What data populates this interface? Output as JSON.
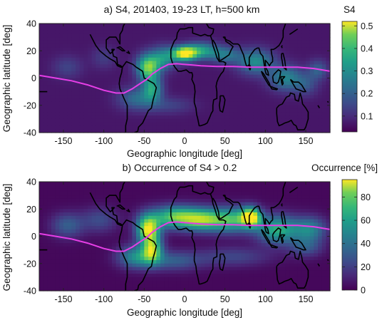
{
  "chart_data": [
    {
      "type": "heatmap",
      "panel": "a",
      "title": "a) S4, 201403, 19-23 LT, h=500 km",
      "xlabel": "Geographic longitude [deg]",
      "ylabel": "Geographic latitude [deg]",
      "xlim": [
        -180,
        180
      ],
      "ylim": [
        -40,
        40
      ],
      "xticks": [
        -150,
        -100,
        -50,
        0,
        50,
        100,
        150
      ],
      "yticks": [
        -40,
        -20,
        0,
        20,
        40
      ],
      "colorbar": {
        "label": "S4",
        "range": [
          0.03,
          0.52
        ],
        "ticks": [
          0.1,
          0.2,
          0.3,
          0.4,
          0.5
        ],
        "colormap": "viridis"
      },
      "background_level": 0.06,
      "hotspots": [
        {
          "lon": -45,
          "lat": 8,
          "lon_width": 14,
          "lat_width": 9,
          "value": 0.42
        },
        {
          "lon": -40,
          "lat": -8,
          "lon_width": 12,
          "lat_width": 9,
          "value": 0.3
        },
        {
          "lon": -60,
          "lat": -15,
          "lon_width": 22,
          "lat_width": 8,
          "value": 0.2
        },
        {
          "lon": 0,
          "lat": 18,
          "lon_width": 14,
          "lat_width": 5,
          "value": 0.5
        },
        {
          "lon": 20,
          "lat": 20,
          "lon_width": 20,
          "lat_width": 6,
          "value": 0.3
        },
        {
          "lon": -25,
          "lat": 15,
          "lon_width": 16,
          "lat_width": 8,
          "value": 0.27
        },
        {
          "lon": 50,
          "lat": 17,
          "lon_width": 18,
          "lat_width": 6,
          "value": 0.22
        },
        {
          "lon": 88,
          "lat": 12,
          "lon_width": 22,
          "lat_width": 9,
          "value": 0.27
        },
        {
          "lon": 125,
          "lat": 0,
          "lon_width": 20,
          "lat_width": 9,
          "value": 0.25
        },
        {
          "lon": 165,
          "lat": 6,
          "lon_width": 12,
          "lat_width": 7,
          "value": 0.18
        },
        {
          "lon": -145,
          "lat": 8,
          "lon_width": 18,
          "lat_width": 8,
          "value": 0.13
        },
        {
          "lon": -100,
          "lat": 15,
          "lon_width": 15,
          "lat_width": 8,
          "value": 0.12
        },
        {
          "lon": -20,
          "lat": -20,
          "lon_width": 30,
          "lat_width": 6,
          "value": 0.13
        },
        {
          "lon": 150,
          "lat": -5,
          "lon_width": 15,
          "lat_width": 8,
          "value": 0.15
        }
      ]
    },
    {
      "type": "heatmap",
      "panel": "b",
      "title": "b) Occurrence of S4 > 0.2",
      "xlabel": "Geographic longitude [deg]",
      "ylabel": "Geographic latitude [deg]",
      "xlim": [
        -180,
        180
      ],
      "ylim": [
        -40,
        40
      ],
      "xticks": [
        -150,
        -100,
        -50,
        0,
        50,
        100,
        150
      ],
      "yticks": [
        -40,
        -20,
        0,
        20,
        40
      ],
      "colorbar": {
        "label": "Occurrence [%]",
        "range": [
          0,
          95
        ],
        "ticks": [
          0,
          20,
          40,
          60,
          80
        ],
        "colormap": "viridis"
      },
      "background_level": 2,
      "hotspots": [
        {
          "lon": -45,
          "lat": 5,
          "lon_width": 14,
          "lat_width": 10,
          "value": 90
        },
        {
          "lon": -40,
          "lat": -10,
          "lon_width": 12,
          "lat_width": 9,
          "value": 70
        },
        {
          "lon": -60,
          "lat": -15,
          "lon_width": 22,
          "lat_width": 8,
          "value": 45
        },
        {
          "lon": -10,
          "lat": 14,
          "lon_width": 30,
          "lat_width": 8,
          "value": 72
        },
        {
          "lon": 25,
          "lat": 12,
          "lon_width": 25,
          "lat_width": 8,
          "value": 62
        },
        {
          "lon": 60,
          "lat": 12,
          "lon_width": 25,
          "lat_width": 9,
          "value": 58
        },
        {
          "lon": 82,
          "lat": 14,
          "lon_width": 12,
          "lat_width": 7,
          "value": 88
        },
        {
          "lon": 115,
          "lat": 5,
          "lon_width": 25,
          "lat_width": 10,
          "value": 60
        },
        {
          "lon": 155,
          "lat": 5,
          "lon_width": 20,
          "lat_width": 9,
          "value": 42
        },
        {
          "lon": -145,
          "lat": 8,
          "lon_width": 20,
          "lat_width": 9,
          "value": 28
        },
        {
          "lon": -105,
          "lat": 12,
          "lon_width": 22,
          "lat_width": 9,
          "value": 22
        },
        {
          "lon": -15,
          "lat": -18,
          "lon_width": 35,
          "lat_width": 7,
          "value": 28
        },
        {
          "lon": 60,
          "lat": -15,
          "lon_width": 45,
          "lat_width": 7,
          "value": 20
        },
        {
          "lon": 150,
          "lat": -8,
          "lon_width": 20,
          "lat_width": 7,
          "value": 25
        }
      ]
    }
  ],
  "magnetic_equator": {
    "color": "#e63ee6",
    "points": [
      [
        -180,
        2
      ],
      [
        -160,
        0
      ],
      [
        -140,
        -2
      ],
      [
        -120,
        -5
      ],
      [
        -100,
        -9
      ],
      [
        -85,
        -11
      ],
      [
        -75,
        -11
      ],
      [
        -65,
        -8
      ],
      [
        -55,
        -4
      ],
      [
        -47,
        -1
      ],
      [
        -40,
        3
      ],
      [
        -30,
        7
      ],
      [
        -20,
        10
      ],
      [
        -10,
        10.5
      ],
      [
        0,
        10
      ],
      [
        10,
        9.5
      ],
      [
        20,
        9
      ],
      [
        40,
        8.5
      ],
      [
        60,
        8.5
      ],
      [
        80,
        8
      ],
      [
        100,
        8
      ],
      [
        120,
        8
      ],
      [
        140,
        8
      ],
      [
        160,
        7
      ],
      [
        180,
        5
      ]
    ]
  },
  "colors": {
    "coastline": "#000000",
    "equator": "#e63ee6"
  }
}
